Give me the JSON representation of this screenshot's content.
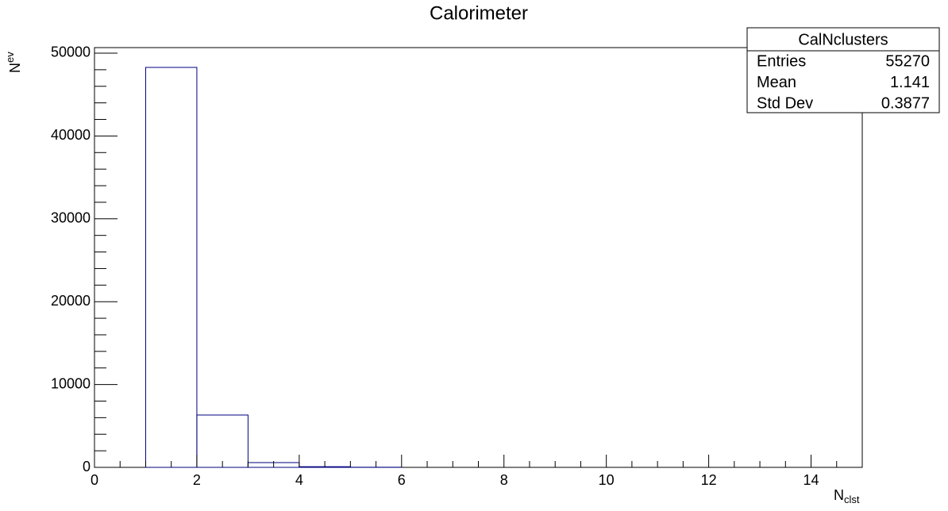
{
  "chart_data": {
    "type": "histogram",
    "title": "Calorimeter",
    "xlabel": {
      "main": "N",
      "sub": "clst"
    },
    "ylabel": {
      "main": "N",
      "sub": "ev"
    },
    "bins": [
      0,
      1,
      2,
      3,
      4,
      5,
      6,
      7,
      8,
      9,
      10,
      11,
      12,
      13,
      14,
      15
    ],
    "values": [
      0,
      48280,
      6320,
      575,
      80,
      15,
      0,
      0,
      0,
      0,
      0,
      0,
      0,
      0,
      0
    ],
    "color": "#000080",
    "xlim": [
      0,
      15
    ],
    "xticks": [
      0,
      2,
      4,
      6,
      8,
      10,
      12,
      14
    ],
    "ylim": [
      0,
      50670
    ],
    "yticks": [
      0,
      10000,
      20000,
      30000,
      40000,
      50000
    ],
    "stats": {
      "title": "CalNclusters",
      "rows": [
        {
          "label": "Entries",
          "value": 55270
        },
        {
          "label": "Mean",
          "value": 1.141
        },
        {
          "label": "Std Dev",
          "value": 0.3877
        }
      ]
    }
  }
}
